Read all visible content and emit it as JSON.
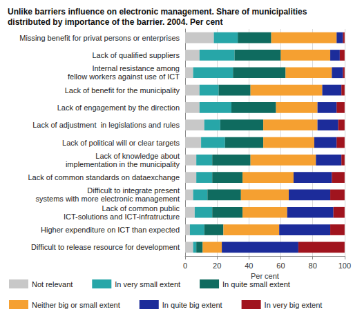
{
  "chart_data": {
    "type": "bar",
    "title": "Unlike barriers influence on electronic management. Share of municipalities distributed by importance of the barrier. 2004. Per cent",
    "x_label": "Per cent",
    "orientation": "horizontal",
    "stacked": true,
    "grid": true,
    "legend": "bottom",
    "categories": [
      "Missing benefit for privat persons or enterprises",
      "Lack of qualified suppliers",
      "Internal resistance among\nfellow workers against use of ICT",
      "Lack of benefit for the municipality",
      "Lack of engagement by the direction",
      "Lack of adjustment  in legislations and rules",
      "Lack of political will or clear targets",
      "Lack of knowledge about\nimplementation in the municipality",
      "Lack of common standards on dataexchange",
      "Difficult to integrate present\nsystems with more electronic management",
      "Lack of common public\nICT-solutions and ICT-infratructure",
      "Higher expenditure on ICT than expected",
      "Difficult to release resource for development"
    ],
    "series": [
      {
        "name": "Not relevant",
        "color": "#c8c8c8",
        "values": [
          18,
          9,
          5,
          9,
          9,
          12,
          10,
          7,
          7,
          5,
          6,
          3,
          5
        ]
      },
      {
        "name": "In very small extent",
        "color": "#27a6a8",
        "values": [
          15,
          22,
          25,
          12,
          20,
          10,
          15,
          10,
          10,
          9,
          11,
          9,
          2
        ]
      },
      {
        "name": "In quite small extent",
        "color": "#0f6b5f",
        "values": [
          21,
          29,
          33,
          20,
          28,
          27,
          24,
          24,
          19,
          21,
          19,
          12,
          4
        ]
      },
      {
        "name": "Neither big or small extent",
        "color": "#f5a031",
        "values": [
          41,
          31,
          29,
          45,
          26,
          34,
          32,
          41,
          32,
          30,
          28,
          35,
          12
        ]
      },
      {
        "name": "In quite big extent",
        "color": "#1c2c9a",
        "values": [
          4,
          6,
          7,
          12,
          12,
          13,
          14,
          16,
          24,
          26,
          29,
          32,
          48
        ]
      },
      {
        "name": "In very big extent",
        "color": "#a0141e",
        "values": [
          1,
          3,
          1,
          2,
          5,
          4,
          5,
          2,
          8,
          9,
          7,
          9,
          29
        ]
      }
    ],
    "xlim": [
      0,
      100
    ],
    "xticks": [
      0,
      20,
      40,
      60,
      80,
      100
    ]
  }
}
